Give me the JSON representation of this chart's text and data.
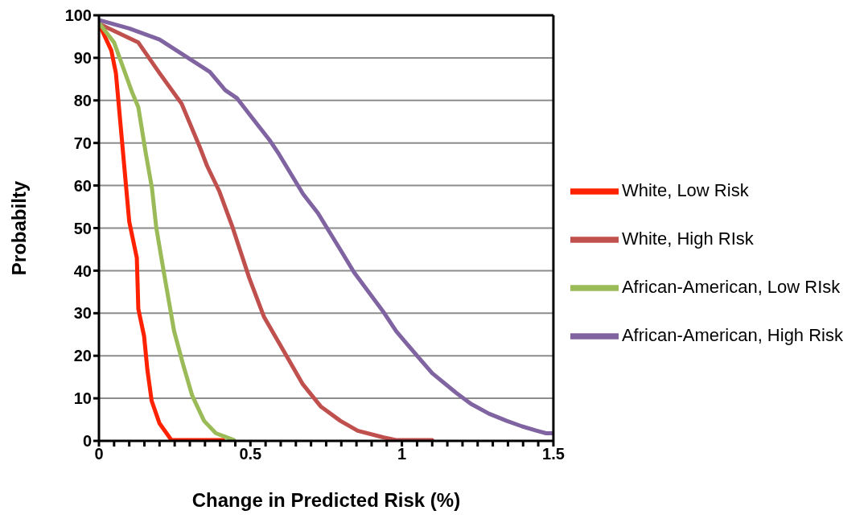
{
  "chart_data": {
    "type": "line",
    "xlabel": "Change in Predicted Risk (%)",
    "ylabel": "Probabilty",
    "xlim": [
      0,
      1.5
    ],
    "ylim": [
      0,
      100
    ],
    "xticks": [
      0,
      {
        "value": 0.05,
        "label": null
      },
      {
        "value": 0.1,
        "label": null
      },
      {
        "value": 0.15,
        "label": null
      },
      {
        "value": 0.2,
        "label": null
      },
      {
        "value": 0.25,
        "label": null
      },
      {
        "value": 0.3,
        "label": null
      },
      {
        "value": 0.35,
        "label": null
      },
      {
        "value": 0.4,
        "label": null
      },
      {
        "value": 0.45,
        "label": null
      },
      0.5,
      {
        "value": 0.55,
        "label": null
      },
      {
        "value": 0.6,
        "label": null
      },
      {
        "value": 0.65,
        "label": null
      },
      {
        "value": 0.7,
        "label": null
      },
      {
        "value": 0.75,
        "label": null
      },
      {
        "value": 0.8,
        "label": null
      },
      {
        "value": 0.85,
        "label": null
      },
      {
        "value": 0.9,
        "label": null
      },
      {
        "value": 0.95,
        "label": null
      },
      1,
      {
        "value": 1.05,
        "label": null
      },
      {
        "value": 1.1,
        "label": null
      },
      {
        "value": 1.15,
        "label": null
      },
      {
        "value": 1.2,
        "label": null
      },
      {
        "value": 1.25,
        "label": null
      },
      {
        "value": 1.3,
        "label": null
      },
      {
        "value": 1.35,
        "label": null
      },
      {
        "value": 1.4,
        "label": null
      },
      {
        "value": 1.45,
        "label": null
      },
      1.5
    ],
    "yticks": [
      0,
      10,
      20,
      30,
      40,
      50,
      60,
      70,
      80,
      90,
      100
    ],
    "grid": "y",
    "legend": "right",
    "marker": "none",
    "line_style": "solid",
    "series": [
      {
        "name": "White, Low Risk",
        "color": "#ff2200",
        "x": [
          0,
          0.041,
          0.056,
          0.1,
          0.125,
          0.13,
          0.149,
          0.16,
          0.174,
          0.2,
          0.239,
          0.41
        ],
        "values": [
          98,
          91.7,
          86.4,
          51.5,
          43,
          31,
          24.6,
          16.6,
          9.4,
          4.1,
          0.2,
          0.2
        ]
      },
      {
        "name": "White, High RIsk",
        "color": "#c0504d",
        "x": [
          0,
          0.13,
          0.2,
          0.273,
          0.332,
          0.357,
          0.397,
          0.441,
          0.496,
          0.545,
          0.609,
          0.673,
          0.732,
          0.797,
          0.854,
          0.94,
          0.98,
          1.1
        ],
        "values": [
          98,
          93.6,
          86.4,
          79.2,
          69.2,
          64.6,
          58.7,
          50.2,
          38.3,
          29.1,
          21.2,
          13.3,
          8.1,
          4.7,
          2.4,
          0.8,
          0.2,
          0.2
        ]
      },
      {
        "name": "African-American, Low RIsk",
        "color": "#9bbb59",
        "x": [
          0,
          0.05,
          0.11,
          0.13,
          0.155,
          0.175,
          0.189,
          0.208,
          0.224,
          0.248,
          0.278,
          0.308,
          0.347,
          0.386,
          0.445
        ],
        "values": [
          98.2,
          93.6,
          81.8,
          78.4,
          67.4,
          59.4,
          50.2,
          42.2,
          35.6,
          25.8,
          17.9,
          10.6,
          4.7,
          1.8,
          0.2
        ]
      },
      {
        "name": "African-American, High Risk",
        "color": "#8064a2",
        "x": [
          0,
          0.1,
          0.2,
          0.366,
          0.417,
          0.456,
          0.496,
          0.565,
          0.594,
          0.674,
          0.723,
          0.797,
          0.842,
          0.941,
          0.981,
          1.051,
          1.1,
          1.179,
          1.228,
          1.287,
          1.346,
          1.397,
          1.445,
          1.476,
          1.5
        ],
        "values": [
          98.9,
          96.9,
          94.3,
          86.7,
          82.4,
          80.5,
          76.8,
          70.5,
          67.4,
          58,
          53.5,
          44.9,
          39.6,
          30.1,
          25.8,
          19.9,
          15.9,
          11.3,
          8.7,
          6.4,
          4.7,
          3.4,
          2.4,
          1.8,
          1.8
        ]
      }
    ]
  }
}
